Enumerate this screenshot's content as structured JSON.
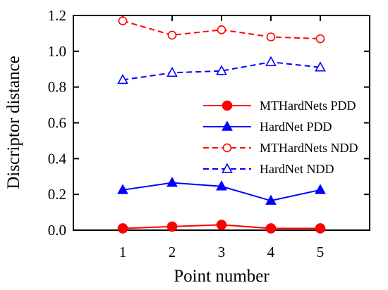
{
  "chart_data": {
    "type": "line",
    "title": "",
    "xlabel": "Point number",
    "ylabel": "Discriptor distance",
    "x": [
      1,
      2,
      3,
      4,
      5
    ],
    "x_tick_labels": [
      "1",
      "2",
      "3",
      "4",
      "5"
    ],
    "xlim": [
      0,
      6
    ],
    "ylim": [
      0,
      1.2
    ],
    "y_ticks": [
      0,
      0.2,
      0.4,
      0.6,
      0.8,
      1.0,
      1.2
    ],
    "y_tick_labels": [
      "0.0",
      "0.2",
      "0.4",
      "0.6",
      "0.8",
      "1.0",
      "1.2"
    ],
    "grid": false,
    "legend_position": "right-middle",
    "series": [
      {
        "name": "MTHardNets PDD",
        "values": [
          0.01,
          0.02,
          0.03,
          0.01,
          0.01
        ],
        "color": "#ff0000",
        "dash": "solid",
        "marker": "circle",
        "filled": true
      },
      {
        "name": "HardNet PDD",
        "values": [
          0.225,
          0.265,
          0.245,
          0.165,
          0.225
        ],
        "color": "#0000ff",
        "dash": "solid",
        "marker": "triangle",
        "filled": true
      },
      {
        "name": "MTHardNets NDD",
        "values": [
          1.17,
          1.09,
          1.12,
          1.08,
          1.07
        ],
        "color": "#ff0000",
        "dash": "dashed",
        "marker": "circle",
        "filled": false
      },
      {
        "name": "HardNet NDD",
        "values": [
          0.84,
          0.88,
          0.89,
          0.94,
          0.91
        ],
        "color": "#0000ff",
        "dash": "dashed",
        "marker": "triangle",
        "filled": false
      }
    ]
  }
}
